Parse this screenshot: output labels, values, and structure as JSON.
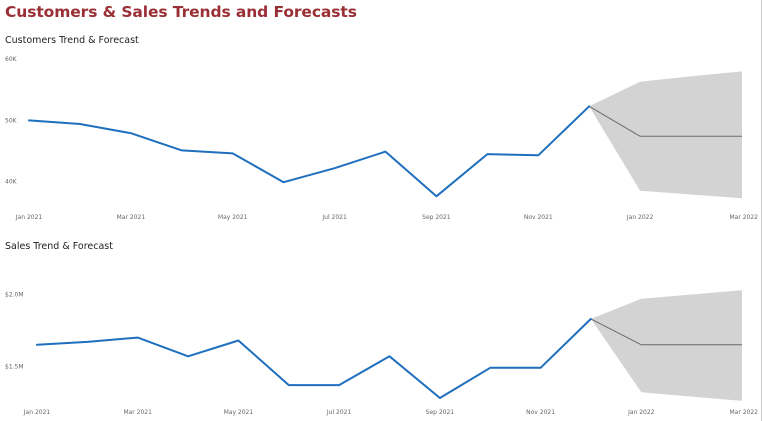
{
  "page_title": "Customers & Sales Trends and Forecasts",
  "colors": {
    "title": "#9a2f35",
    "actual_line": "#1f6fbf",
    "forecast_line": "#6b6b6b",
    "forecast_band": "#d3d3d3"
  },
  "chart_data": [
    {
      "type": "line",
      "title": "Customers Trend & Forecast",
      "xlabel": "",
      "ylabel": "",
      "categories": [
        "Jan 2021",
        "Feb 2021",
        "Mar 2021",
        "Apr 2021",
        "May 2021",
        "Jun 2021",
        "Jul 2021",
        "Aug 2021",
        "Sep 2021",
        "Oct 2021",
        "Nov 2021",
        "Dec 2021",
        "Jan 2022",
        "Feb 2022",
        "Mar 2022"
      ],
      "x_tick_labels": [
        "Jan 2021",
        "Mar 2021",
        "May 2021",
        "Jul 2021",
        "Sep 2021",
        "Nov 2021",
        "Jan 2022",
        "Mar 2022"
      ],
      "y_ticks": [
        40000,
        50000,
        60000
      ],
      "y_tick_labels": [
        "40K",
        "50K",
        "60K"
      ],
      "ylim": [
        37000,
        61000
      ],
      "grid": false,
      "series": [
        {
          "role": "actual",
          "values": [
            50000,
            49400,
            47900,
            45100,
            44600,
            39900,
            42200,
            44900,
            37600,
            44500,
            44300,
            52300,
            null,
            null,
            null
          ]
        },
        {
          "role": "forecast",
          "values": [
            null,
            null,
            null,
            null,
            null,
            null,
            null,
            null,
            null,
            null,
            null,
            52300,
            47400,
            47400,
            47400
          ]
        },
        {
          "role": "forecast_upper",
          "values": [
            null,
            null,
            null,
            null,
            null,
            null,
            null,
            null,
            null,
            null,
            null,
            52300,
            56300,
            57200,
            58000
          ]
        },
        {
          "role": "forecast_lower",
          "values": [
            null,
            null,
            null,
            null,
            null,
            null,
            null,
            null,
            null,
            null,
            null,
            52300,
            38500,
            37900,
            37300
          ]
        }
      ]
    },
    {
      "type": "line",
      "title": "Sales Trend & Forecast",
      "xlabel": "",
      "ylabel": "",
      "categories": [
        "Jan 2021",
        "Feb 2021",
        "Mar 2021",
        "Apr 2021",
        "May 2021",
        "Jun 2021",
        "Jul 2021",
        "Aug 2021",
        "Sep 2021",
        "Oct 2021",
        "Nov 2021",
        "Dec 2021",
        "Jan 2022",
        "Feb 2022",
        "Mar 2022"
      ],
      "x_tick_labels": [
        "Jan 2021",
        "Mar 2021",
        "May 2021",
        "Jul 2021",
        "Sep 2021",
        "Nov 2021",
        "Jan 2022",
        "Mar 2022"
      ],
      "y_ticks": [
        1500000,
        2000000
      ],
      "y_tick_labels": [
        "$1.5M",
        "$2.0M"
      ],
      "ylim": [
        1280000,
        2080000
      ],
      "grid": false,
      "series": [
        {
          "role": "actual",
          "values": [
            1650000,
            1670000,
            1700000,
            1570000,
            1680000,
            1370000,
            1370000,
            1570000,
            1280000,
            1490000,
            1490000,
            1830000,
            null,
            null,
            null
          ]
        },
        {
          "role": "forecast",
          "values": [
            null,
            null,
            null,
            null,
            null,
            null,
            null,
            null,
            null,
            null,
            null,
            1830000,
            1650000,
            1650000,
            1650000
          ]
        },
        {
          "role": "forecast_upper",
          "values": [
            null,
            null,
            null,
            null,
            null,
            null,
            null,
            null,
            null,
            null,
            null,
            1830000,
            1970000,
            2000000,
            2030000
          ]
        },
        {
          "role": "forecast_lower",
          "values": [
            null,
            null,
            null,
            null,
            null,
            null,
            null,
            null,
            null,
            null,
            null,
            1830000,
            1320000,
            1290000,
            1260000
          ]
        }
      ]
    }
  ]
}
